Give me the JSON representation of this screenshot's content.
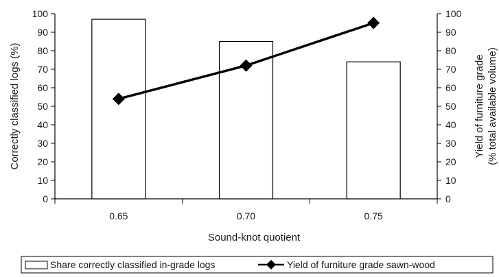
{
  "chart_data": {
    "type": "bar",
    "categories": [
      "0.65",
      "0.70",
      "0.75"
    ],
    "xlabel": "Sound-knot quotient",
    "ylabel": "Correctly classified logs (%)",
    "ylabel_right_line1": "Yield of furniture grade",
    "ylabel_right_line2": "(% total available volume)",
    "ylim": [
      0,
      100
    ],
    "ylim_right": [
      0,
      100
    ],
    "yticks": [
      "0",
      "10",
      "20",
      "30",
      "40",
      "50",
      "60",
      "70",
      "80",
      "90",
      "100"
    ],
    "grid": false,
    "legend_position": "bottom",
    "series": [
      {
        "name": "Share correctly classified in-grade logs",
        "type": "bar",
        "axis": "left",
        "values": [
          97,
          85,
          74
        ],
        "fill": "#ffffff",
        "stroke": "#000000"
      },
      {
        "name": "Yield of furniture grade sawn-wood",
        "type": "line",
        "axis": "right",
        "marker": "diamond",
        "values": [
          54,
          72,
          95
        ],
        "color": "#000000"
      }
    ]
  }
}
